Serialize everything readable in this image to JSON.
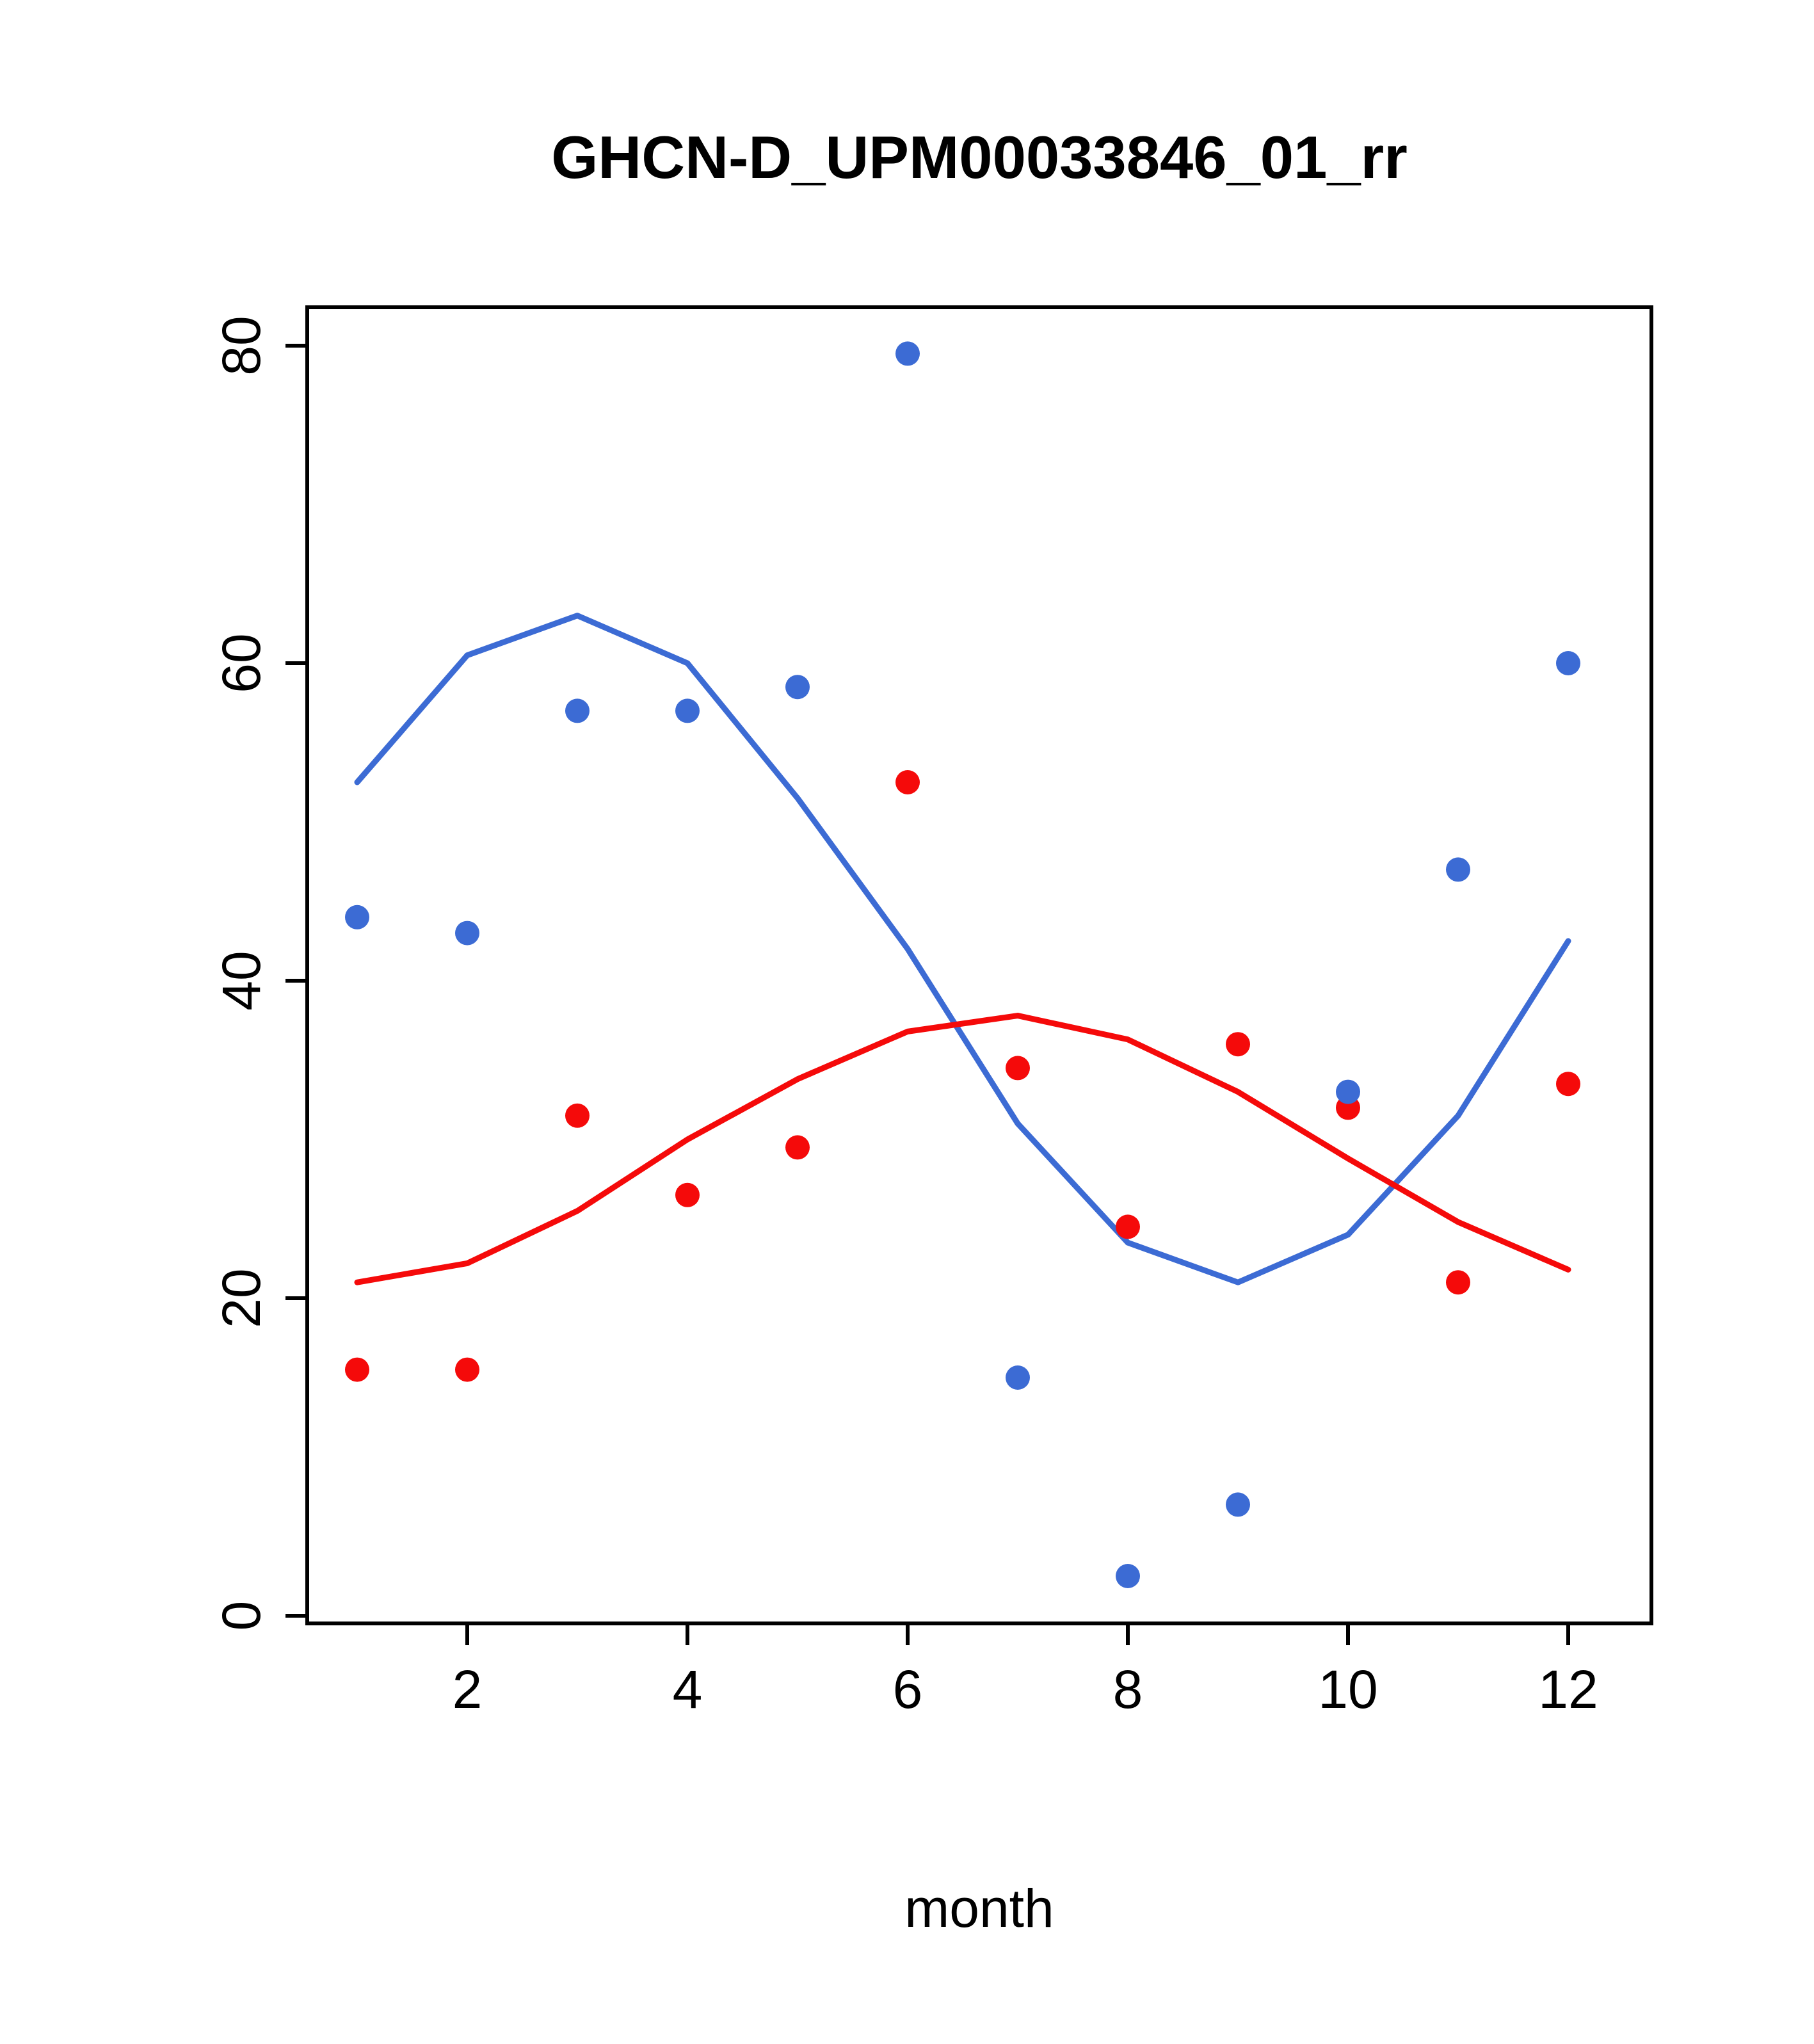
{
  "chart_data": {
    "type": "scatter",
    "title": "GHCN-D_UPM00033846_01_rr",
    "xlabel": "month",
    "ylabel": "",
    "x_ticks": [
      2,
      4,
      6,
      8,
      10,
      12
    ],
    "y_ticks": [
      0,
      20,
      40,
      60,
      80
    ],
    "xlim": [
      0.56,
      12.75
    ],
    "ylim": [
      0,
      80
    ],
    "x": [
      1,
      2,
      3,
      4,
      5,
      6,
      7,
      8,
      9,
      10,
      11,
      12
    ],
    "colors": {
      "blue": "#3C6BD4",
      "red": "#F50A0A"
    },
    "series": [
      {
        "name": "blue-smooth-line",
        "kind": "line",
        "color_key": "blue",
        "values": [
          52.5,
          60.5,
          63.0,
          60.0,
          51.5,
          42.0,
          31.0,
          23.5,
          21.0,
          24.0,
          31.5,
          42.5
        ]
      },
      {
        "name": "red-smooth-line",
        "kind": "line",
        "color_key": "red",
        "values": [
          21.0,
          22.2,
          25.5,
          30.0,
          33.8,
          36.8,
          37.8,
          36.3,
          33.0,
          28.8,
          24.8,
          21.8
        ]
      },
      {
        "name": "red-points",
        "kind": "points",
        "color_key": "red",
        "values": [
          15.5,
          15.5,
          31.5,
          26.5,
          29.5,
          52.5,
          34.5,
          24.5,
          36.0,
          32.0,
          21.0,
          33.5
        ]
      },
      {
        "name": "blue-points",
        "kind": "points",
        "color_key": "blue",
        "values": [
          44.0,
          43.0,
          57.0,
          57.0,
          58.5,
          79.5,
          15.0,
          2.5,
          7.0,
          33.0,
          47.0,
          60.0
        ]
      }
    ]
  }
}
